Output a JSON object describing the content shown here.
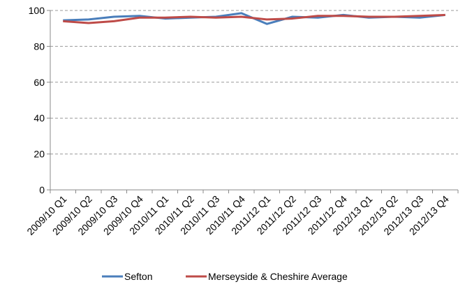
{
  "chart_data": {
    "type": "line",
    "categories": [
      "2009/10 Q1",
      "2009/10 Q2",
      "2009/10 Q3",
      "2009/10 Q4",
      "2010/11 Q1",
      "2010/11 Q2",
      "2010/11 Q3",
      "2010/11 Q4",
      "2011/12 Q1",
      "2011/12 Q2",
      "2011/12 Q3",
      "2011/12 Q4",
      "2012/13 Q1",
      "2012/13 Q2",
      "2012/13 Q3",
      "2012/13 Q4"
    ],
    "series": [
      {
        "name": "Sefton",
        "color": "#4a7ebb",
        "values": [
          94.5,
          95,
          96.5,
          97,
          95.5,
          96,
          96.5,
          98.5,
          92.5,
          96.5,
          96,
          97.5,
          96,
          96.5,
          96,
          97.5
        ]
      },
      {
        "name": "Merseyside & Cheshire Average",
        "color": "#be4b48",
        "values": [
          94,
          93,
          94,
          96,
          96,
          96.5,
          96,
          96.5,
          95,
          95.5,
          97,
          97,
          96.5,
          96.5,
          97,
          97.5
        ]
      }
    ],
    "ylim": [
      0,
      100
    ],
    "yticks": [
      0,
      20,
      40,
      60,
      80,
      100
    ],
    "grid": true,
    "legend": "bottom"
  }
}
